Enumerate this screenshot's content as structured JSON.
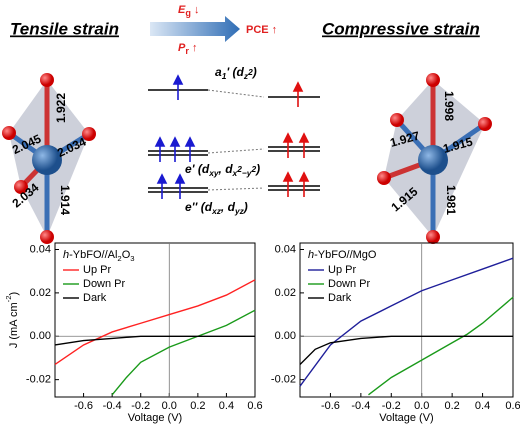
{
  "diagram": {
    "tensile": "Tensile strain",
    "compressive": "Compressive strain",
    "eg": [
      {
        "text": "E",
        "style": "italic"
      },
      {
        "text": "g",
        "style": "sub"
      },
      {
        "text": " ↓"
      }
    ],
    "pr": [
      {
        "text": "P",
        "style": "italic"
      },
      {
        "text": "r",
        "style": "sub"
      },
      {
        "text": " ↑"
      }
    ],
    "pce": [
      {
        "text": "PCE ↑"
      }
    ],
    "left_bonds": [
      "1.922",
      "2.045",
      "2.034",
      "2.034",
      "1.914"
    ],
    "right_bonds": [
      "1.998",
      "1.927",
      "1.915",
      "1.915",
      "1.981"
    ],
    "levels": [
      [
        {
          "text": "a",
          "style": "italic"
        },
        {
          "text": "1",
          "style": "sub"
        },
        {
          "text": "' ("
        },
        {
          "text": "d",
          "style": "italic"
        },
        {
          "text": "z",
          "style": "sub"
        },
        {
          "text": "2",
          "style": "subsup"
        },
        {
          "text": ")"
        }
      ],
      [
        {
          "text": "e' ("
        },
        {
          "text": "d",
          "style": "italic"
        },
        {
          "text": "xy",
          "style": "sub"
        },
        {
          "text": ", "
        },
        {
          "text": "d",
          "style": "italic"
        },
        {
          "text": "x",
          "style": "sub"
        },
        {
          "text": "2",
          "style": "subsup"
        },
        {
          "text": "−y",
          "style": "sub"
        },
        {
          "text": "2",
          "style": "subsup"
        },
        {
          "text": ")"
        }
      ],
      [
        {
          "text": "e'' ("
        },
        {
          "text": "d",
          "style": "italic"
        },
        {
          "text": "xz",
          "style": "sub"
        },
        {
          "text": ", "
        },
        {
          "text": "d",
          "style": "italic"
        },
        {
          "text": "yz",
          "style": "sub"
        },
        {
          "text": ")"
        }
      ]
    ]
  },
  "chart_data": [
    {
      "type": "line",
      "annotation": [
        {
          "text": "h",
          "style": "italic"
        },
        {
          "text": "-YbFO//Al"
        },
        {
          "text": "2",
          "style": "sub"
        },
        {
          "text": "O"
        },
        {
          "text": "3",
          "style": "sub"
        }
      ],
      "xlabel": "Voltage (V)",
      "ylabel": [
        {
          "text": "J (mA cm"
        },
        {
          "text": "-2",
          "style": "sup"
        },
        {
          "text": ")"
        }
      ],
      "xlim": [
        -0.8,
        0.6
      ],
      "ylim": [
        -0.028,
        0.043
      ],
      "xticks": [
        -0.6,
        -0.4,
        -0.2,
        {
          "value": 0,
          "label": "0.0"
        },
        0.2,
        0.4,
        0.6
      ],
      "yticks": [
        -0.02,
        {
          "value": 0,
          "label": "0.00"
        },
        0.02,
        0.04
      ],
      "zero_lines": true,
      "legend": "upper left",
      "series": [
        {
          "name": "Up Pr",
          "color": "#ff2222",
          "x": [
            -0.8,
            -0.6,
            -0.4,
            -0.2,
            0,
            0.2,
            0.4,
            0.6
          ],
          "values": [
            -0.013,
            -0.004,
            0.002,
            0.006,
            0.01,
            0.014,
            0.019,
            0.026
          ]
        },
        {
          "name": "Down Pr",
          "color": "#1a9a1a",
          "x": [
            -0.4,
            -0.3,
            -0.2,
            0,
            0.2,
            0.4,
            0.6
          ],
          "values": [
            -0.027,
            -0.019,
            -0.012,
            -0.005,
            0,
            0.005,
            0.012
          ]
        },
        {
          "name": "Dark",
          "color": "#000000",
          "x": [
            -0.8,
            -0.6,
            -0.4,
            -0.2,
            0,
            0.6
          ],
          "values": [
            -0.004,
            -0.002,
            -0.001,
            0,
            0,
            0
          ]
        }
      ]
    },
    {
      "type": "line",
      "annotation": [
        {
          "text": "h",
          "style": "italic"
        },
        {
          "text": "-YbFO//MgO"
        }
      ],
      "xlabel": "Voltage (V)",
      "xlim": [
        -0.8,
        0.6
      ],
      "ylim": [
        -0.028,
        0.043
      ],
      "xticks": [
        -0.6,
        -0.4,
        -0.2,
        {
          "value": 0,
          "label": "0.0"
        },
        0.2,
        0.4,
        0.6
      ],
      "yticks": [
        -0.02,
        {
          "value": 0,
          "label": "0.00"
        },
        0.02,
        0.04
      ],
      "zero_lines": true,
      "legend": "upper left",
      "series": [
        {
          "name": "Up Pr",
          "color": "#1f1f9a",
          "x": [
            -0.8,
            -0.6,
            -0.4,
            -0.2,
            0,
            0.2,
            0.4,
            0.6
          ],
          "values": [
            -0.023,
            -0.004,
            0.007,
            0.014,
            0.021,
            0.026,
            0.031,
            0.036
          ]
        },
        {
          "name": "Down Pr",
          "color": "#1a9a1a",
          "x": [
            -0.35,
            -0.2,
            0,
            0.2,
            0.3,
            0.4,
            0.6
          ],
          "values": [
            -0.027,
            -0.019,
            -0.011,
            -0.003,
            0.001,
            0.006,
            0.018
          ]
        },
        {
          "name": "Dark",
          "color": "#000000",
          "x": [
            -0.8,
            -0.7,
            -0.6,
            -0.4,
            -0.2,
            0.6
          ],
          "values": [
            -0.013,
            -0.006,
            -0.003,
            -0.001,
            0,
            0
          ]
        }
      ]
    }
  ]
}
